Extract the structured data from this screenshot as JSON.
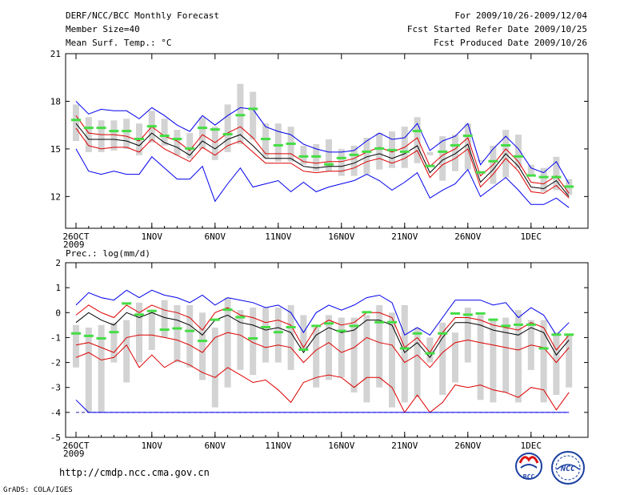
{
  "header": {
    "title_left_1": "DERF/NCC/BCC Monthly Forecast",
    "title_left_2": "Member Size=40",
    "title_left_3": "Mean Surf. Temp.: °C",
    "title_right_1": "For 2009/10/26-2009/12/04",
    "title_right_2": "Fcst Started Refer Date 2009/10/25",
    "title_right_3": "Fcst Produced Date 2009/10/26"
  },
  "footer": {
    "url": "http://cmdp.ncc.cma.gov.cn",
    "credit": "GrADS: COLA/IGES",
    "logo_bcc": "BCC",
    "logo_ncc": "NCC"
  },
  "colors": {
    "box": "#d3d3d3",
    "median": "#44dd44",
    "mean": "#000000",
    "inner": "#dd0000",
    "outer": "#0000ee",
    "dash": "#2222aa"
  },
  "chart_data": [
    {
      "type": "line",
      "panel": "temperature",
      "title": "Mean Surf. Temp.: °C",
      "xlabel": "",
      "ylabel": "°C",
      "ylim": [
        10,
        21
      ],
      "yticks": [
        12,
        15,
        18,
        21
      ],
      "x_ticks": [
        {
          "day": 0,
          "label": "26OCT",
          "label2": "2009"
        },
        {
          "day": 6,
          "label": "1NOV"
        },
        {
          "day": 11,
          "label": "6NOV"
        },
        {
          "day": 16,
          "label": "11NOV"
        },
        {
          "day": 21,
          "label": "16NOV"
        },
        {
          "day": 26,
          "label": "21NOV"
        },
        {
          "day": 31,
          "label": "26NOV"
        },
        {
          "day": 36,
          "label": "1DEC"
        }
      ],
      "days": [
        0,
        1,
        2,
        3,
        4,
        5,
        6,
        7,
        8,
        9,
        10,
        11,
        12,
        13,
        14,
        15,
        16,
        17,
        18,
        19,
        20,
        21,
        22,
        23,
        24,
        25,
        26,
        27,
        28,
        29,
        30,
        31,
        32,
        33,
        34,
        35,
        36,
        37,
        38,
        39
      ],
      "box_low": [
        15.5,
        14.8,
        14.8,
        14.9,
        15.0,
        14.6,
        15.4,
        15.2,
        14.6,
        14.4,
        15.0,
        14.3,
        14.8,
        15.3,
        15.6,
        14.4,
        14.2,
        14.2,
        14.0,
        13.6,
        13.6,
        13.3,
        13.3,
        13.4,
        13.7,
        13.8,
        13.8,
        14.1,
        14.6,
        13.0,
        13.6,
        13.7,
        14.2,
        12.8,
        13.2,
        13.8,
        13.4,
        12.3,
        12.4,
        12.1
      ],
      "box_high": [
        17.8,
        17.0,
        16.8,
        16.8,
        16.9,
        16.6,
        17.4,
        16.9,
        16.2,
        16.0,
        17.0,
        16.4,
        17.8,
        19.1,
        18.6,
        16.6,
        16.6,
        16.4,
        15.2,
        15.3,
        15.6,
        15.0,
        15.2,
        15.7,
        16.0,
        16.1,
        16.4,
        17.0,
        14.8,
        15.8,
        15.9,
        16.6,
        14.3,
        15.2,
        16.2,
        15.9,
        14.0,
        13.8,
        14.5,
        13.1
      ],
      "median": [
        16.8,
        16.3,
        16.3,
        16.1,
        16.1,
        15.6,
        16.4,
        15.8,
        15.6,
        15.0,
        16.3,
        16.2,
        15.9,
        17.1,
        17.5,
        15.6,
        15.2,
        15.3,
        14.5,
        14.5,
        14.0,
        14.4,
        14.6,
        14.8,
        15.0,
        14.9,
        14.8,
        16.1,
        13.9,
        14.8,
        15.2,
        15.8,
        13.5,
        14.2,
        15.2,
        14.5,
        13.3,
        13.2,
        13.2,
        12.6
      ],
      "series": [
        {
          "name": "max",
          "role": "outer",
          "values": [
            18.0,
            17.2,
            17.5,
            17.4,
            17.4,
            16.9,
            17.6,
            17.1,
            16.5,
            16.1,
            17.1,
            16.5,
            17.1,
            17.6,
            17.5,
            16.4,
            16.1,
            15.9,
            15.3,
            15.0,
            14.8,
            14.8,
            14.9,
            15.5,
            16.0,
            15.6,
            15.7,
            16.6,
            14.9,
            15.5,
            15.8,
            16.6,
            14.0,
            15.0,
            15.8,
            15.0,
            13.8,
            13.5,
            14.2,
            12.8
          ]
        },
        {
          "name": "upper",
          "role": "inner",
          "values": [
            17.1,
            16.0,
            15.9,
            15.9,
            15.8,
            15.5,
            16.4,
            15.8,
            15.5,
            14.9,
            15.9,
            15.4,
            16.0,
            16.4,
            15.7,
            14.7,
            14.7,
            14.7,
            14.2,
            14.1,
            14.2,
            14.2,
            14.4,
            14.8,
            15.1,
            14.8,
            15.1,
            15.7,
            13.9,
            14.6,
            15.0,
            15.7,
            13.3,
            14.0,
            15.0,
            14.2,
            12.9,
            12.8,
            13.3,
            12.2
          ]
        },
        {
          "name": "mean",
          "role": "mean",
          "values": [
            16.6,
            15.6,
            15.6,
            15.6,
            15.5,
            15.2,
            16.0,
            15.4,
            15.1,
            14.6,
            15.5,
            15.0,
            15.6,
            15.9,
            15.2,
            14.4,
            14.4,
            14.4,
            13.9,
            13.8,
            13.9,
            13.9,
            14.1,
            14.5,
            14.7,
            14.4,
            14.7,
            15.2,
            13.5,
            14.3,
            14.7,
            15.3,
            12.9,
            13.7,
            14.7,
            13.9,
            12.6,
            12.5,
            13.0,
            12.0
          ]
        },
        {
          "name": "lower",
          "role": "inner",
          "values": [
            16.3,
            15.2,
            15.0,
            15.1,
            15.1,
            14.8,
            15.6,
            15.0,
            14.6,
            14.2,
            15.1,
            14.6,
            15.2,
            15.5,
            14.8,
            14.1,
            14.1,
            14.1,
            13.6,
            13.5,
            13.6,
            13.6,
            13.8,
            14.2,
            14.4,
            14.1,
            14.4,
            14.9,
            13.2,
            14.0,
            14.4,
            15.0,
            12.6,
            13.4,
            14.4,
            13.6,
            12.3,
            12.2,
            12.7,
            11.9
          ]
        },
        {
          "name": "min",
          "role": "outer",
          "values": [
            15.0,
            13.6,
            13.4,
            13.6,
            13.4,
            13.4,
            14.5,
            13.8,
            13.1,
            13.1,
            13.9,
            11.7,
            12.8,
            13.8,
            12.6,
            12.8,
            13.0,
            12.3,
            12.9,
            12.3,
            12.6,
            12.8,
            13.0,
            13.4,
            13.0,
            12.4,
            12.9,
            13.5,
            11.9,
            12.4,
            12.8,
            13.7,
            12.0,
            12.6,
            13.2,
            12.4,
            11.5,
            11.5,
            11.9,
            11.3
          ]
        }
      ]
    },
    {
      "type": "line",
      "panel": "precipitation",
      "title": "Prec.: log(mm/d)",
      "xlabel": "",
      "ylabel": "log(mm/d)",
      "ylim": [
        -5,
        2
      ],
      "yticks": [
        -5,
        -4,
        -3,
        -2,
        -1,
        0,
        1,
        2
      ],
      "dashed_line": -4,
      "x_ticks": [
        {
          "day": 0,
          "label": "26OCT",
          "label2": "2009"
        },
        {
          "day": 6,
          "label": "1NOV"
        },
        {
          "day": 11,
          "label": "6NOV"
        },
        {
          "day": 16,
          "label": "11NOV"
        },
        {
          "day": 21,
          "label": "16NOV"
        },
        {
          "day": 26,
          "label": "21NOV"
        },
        {
          "day": 31,
          "label": "26NOV"
        },
        {
          "day": 36,
          "label": "1DEC"
        }
      ],
      "days": [
        0,
        1,
        2,
        3,
        4,
        5,
        6,
        7,
        8,
        9,
        10,
        11,
        12,
        13,
        14,
        15,
        16,
        17,
        18,
        19,
        20,
        21,
        22,
        23,
        24,
        25,
        26,
        27,
        28,
        29,
        30,
        31,
        32,
        33,
        34,
        35,
        36,
        37,
        38,
        39
      ],
      "box_low": [
        -2.2,
        -4.0,
        -4.0,
        -2.0,
        -2.8,
        -2.0,
        -1.5,
        -1.0,
        -2.0,
        -2.2,
        -2.7,
        -3.8,
        -3.0,
        -2.3,
        -2.5,
        -2.0,
        -2.0,
        -2.3,
        -1.5,
        -3.0,
        -2.7,
        -2.6,
        -3.2,
        -3.6,
        -3.0,
        -3.8,
        -3.6,
        -3.4,
        -2.0,
        -3.3,
        -2.8,
        -2.0,
        -3.5,
        -3.6,
        -3.2,
        -3.6,
        -2.3,
        -3.6,
        -3.3,
        -3.0
      ],
      "box_high": [
        -0.5,
        -0.6,
        -0.5,
        -0.4,
        -0.3,
        0.4,
        0.1,
        0.5,
        0.3,
        0.3,
        0.0,
        -0.6,
        0.6,
        0.1,
        0.2,
        0.2,
        0.2,
        0.3,
        -0.1,
        -0.6,
        -0.1,
        -0.2,
        -0.2,
        -0.1,
        0.3,
        0.0,
        0.3,
        -0.6,
        -1.0,
        -0.4,
        -0.8,
        0.2,
        -0.1,
        -0.3,
        -0.2,
        0.1,
        -0.3,
        -0.3,
        -0.8,
        -0.9
      ],
      "median": [
        -0.85,
        -0.95,
        -1.05,
        -0.8,
        0.35,
        -0.1,
        0.05,
        -0.7,
        -0.65,
        -0.75,
        -1.15,
        -0.3,
        0.1,
        -0.2,
        -1.05,
        -0.6,
        -0.8,
        -0.6,
        -1.5,
        -0.55,
        -0.45,
        -0.75,
        -0.55,
        0.0,
        -0.4,
        -0.4,
        -1.45,
        -0.85,
        -1.65,
        -0.85,
        -0.05,
        -0.1,
        -0.05,
        -0.3,
        -0.55,
        -0.5,
        -0.5,
        -1.45,
        -0.9,
        -0.9
      ],
      "series": [
        {
          "name": "max",
          "role": "outer",
          "values": [
            0.3,
            0.8,
            0.6,
            0.5,
            0.9,
            0.6,
            0.9,
            0.7,
            0.6,
            0.4,
            0.7,
            0.3,
            0.6,
            0.5,
            0.4,
            0.2,
            0.3,
            0.0,
            -0.8,
            0.0,
            0.3,
            0.1,
            0.3,
            0.6,
            0.7,
            0.4,
            -0.9,
            -0.6,
            -0.9,
            -0.2,
            0.5,
            0.5,
            0.5,
            0.3,
            0.4,
            -0.2,
            0.2,
            -0.1,
            -0.9,
            -0.4
          ]
        },
        {
          "name": "upper",
          "role": "inner",
          "values": [
            -0.1,
            0.3,
            0.0,
            -0.2,
            0.3,
            0.0,
            0.3,
            0.1,
            0.0,
            -0.2,
            -0.7,
            0.0,
            0.2,
            -0.1,
            -0.2,
            -0.4,
            -0.3,
            -0.5,
            -1.4,
            -0.6,
            -0.3,
            -0.5,
            -0.4,
            0.0,
            0.0,
            -0.2,
            -1.4,
            -1.0,
            -1.6,
            -0.8,
            -0.2,
            -0.2,
            -0.3,
            -0.5,
            -0.6,
            -0.7,
            -0.4,
            -0.6,
            -1.5,
            -0.9
          ]
        },
        {
          "name": "mean",
          "role": "mean",
          "values": [
            -0.4,
            0.0,
            -0.3,
            -0.5,
            0.0,
            -0.2,
            0.0,
            -0.2,
            -0.3,
            -0.5,
            -0.9,
            -0.3,
            -0.1,
            -0.4,
            -0.5,
            -0.7,
            -0.6,
            -0.8,
            -1.6,
            -0.9,
            -0.6,
            -0.8,
            -0.7,
            -0.3,
            -0.3,
            -0.5,
            -1.6,
            -1.2,
            -1.8,
            -1.0,
            -0.4,
            -0.4,
            -0.5,
            -0.7,
            -0.8,
            -0.9,
            -0.6,
            -0.8,
            -1.7,
            -1.1
          ]
        },
        {
          "name": "lower",
          "role": "inner",
          "values": [
            -1.3,
            -1.2,
            -1.4,
            -1.6,
            -1.0,
            -0.9,
            -0.9,
            -1.0,
            -1.1,
            -1.3,
            -1.6,
            -1.0,
            -0.8,
            -0.9,
            -1.2,
            -1.4,
            -1.3,
            -1.4,
            -2.0,
            -1.5,
            -1.2,
            -1.6,
            -1.4,
            -1.0,
            -1.2,
            -1.3,
            -2.0,
            -1.7,
            -2.2,
            -1.6,
            -1.2,
            -1.1,
            -1.2,
            -1.3,
            -1.4,
            -1.5,
            -1.3,
            -1.4,
            -2.0,
            -1.4
          ]
        },
        {
          "name": "min",
          "role": "inner",
          "values": [
            -1.8,
            -1.6,
            -1.9,
            -1.8,
            -1.3,
            -2.2,
            -1.7,
            -2.2,
            -1.9,
            -2.1,
            -2.4,
            -2.6,
            -2.2,
            -2.5,
            -2.8,
            -2.7,
            -3.1,
            -3.6,
            -2.8,
            -2.6,
            -2.5,
            -2.6,
            -3.0,
            -2.6,
            -2.6,
            -3.0,
            -4.0,
            -3.3,
            -4.0,
            -3.6,
            -2.9,
            -3.0,
            -2.9,
            -3.1,
            -3.2,
            -3.4,
            -3.0,
            -3.1,
            -3.9,
            -3.2
          ]
        },
        {
          "name": "floor",
          "role": "outer",
          "values": [
            -3.5,
            -4.0,
            -4.0,
            -4.0,
            -4.0,
            -4.0,
            -4.0,
            -4.0,
            -4.0,
            -4.0,
            -4.0,
            -4.0,
            -4.0,
            -4.0,
            -4.0,
            -4.0,
            -4.0,
            -4.0,
            -4.0,
            -4.0,
            -4.0,
            -4.0,
            -4.0,
            -4.0,
            -4.0,
            -4.0,
            -4.0,
            -4.0,
            -4.0,
            -4.0,
            -4.0,
            -4.0,
            -4.0,
            -4.0,
            -4.0,
            -4.0,
            -4.0,
            -4.0,
            -4.0,
            -4.0
          ]
        }
      ]
    }
  ]
}
